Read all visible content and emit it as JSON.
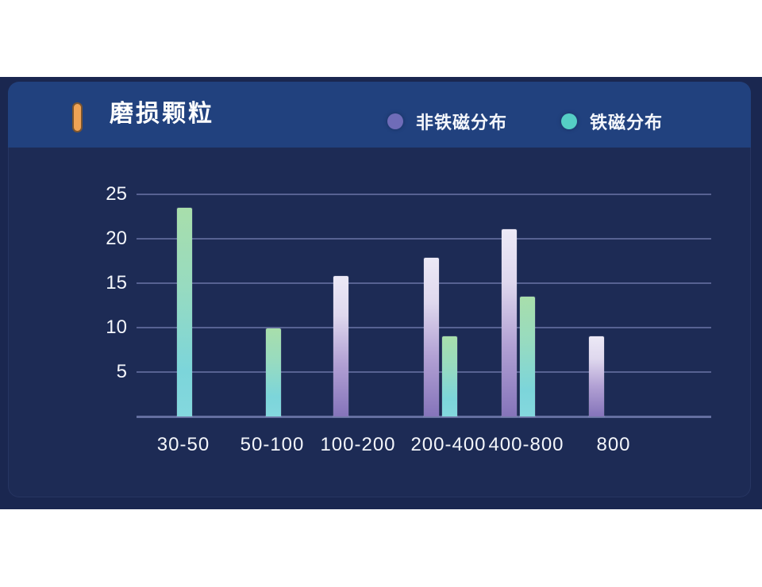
{
  "panel": {
    "title": "磨损颗粒",
    "title_icon": "orange-pill-icon"
  },
  "chart_data": {
    "type": "bar",
    "title": "磨损颗粒",
    "categories": [
      "30-50",
      "50-100",
      "100-200",
      "200-400",
      "400-800",
      "800"
    ],
    "series": [
      {
        "name": "非铁磁分布",
        "dot_color": "#6f6cb8",
        "gradient_top": "#ece9f6",
        "gradient_bottom": "#8574ba",
        "values": [
          0,
          0,
          15.8,
          17.9,
          21.1,
          9
        ]
      },
      {
        "name": "铁磁分布",
        "dot_color": "#55cec5",
        "gradient_top": "#a8deab",
        "gradient_bottom": "#7cd5da",
        "values": [
          23.5,
          9.9,
          0,
          9,
          13.5,
          0
        ]
      }
    ],
    "y_ticks": [
      5,
      10,
      15,
      20,
      25
    ],
    "ylim": [
      0,
      26.5
    ],
    "xlabel": "",
    "ylabel": "",
    "grid": "horizontal",
    "legend_position": "top-right"
  },
  "colors": {
    "page_bg": "#ffffff",
    "panel_outer": "#1a2750",
    "panel_inner": "#1d2b55",
    "header_bg": "#21417e",
    "grid_line": "#616c9e",
    "axis_text": "#f4f6fb",
    "title_text": "#ffffff",
    "accent_pill": "#f0a355"
  }
}
